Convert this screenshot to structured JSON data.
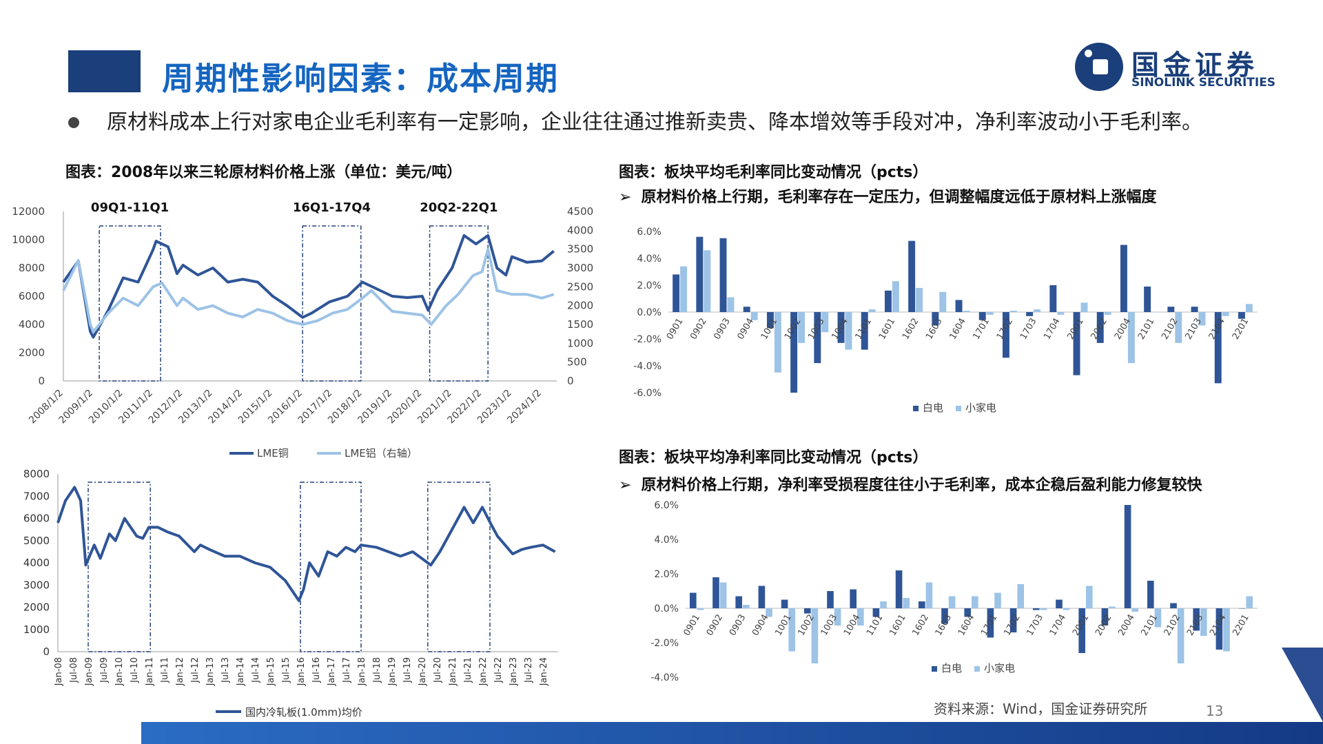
{
  "header": {
    "title": "周期性影响因素：成本周期"
  },
  "logo": {
    "cn": "国金证券",
    "en": "SINOLINK SECURITIES"
  },
  "bullet": {
    "text": "原材料成本上行对家电企业毛利率有一定影响，企业往往通过推新卖贵、降本增效等手段对冲，净利率波动小于毛利率。"
  },
  "fig1": {
    "title": "图表：2008年以来三轮原材料价格上涨（单位：美元/吨）"
  },
  "fig2": {
    "title": "图表：板块平均毛利率同比变动情况（pcts）",
    "note": "原材料价格上行期，毛利率存在一定压力，但调整幅度远低于原材料上涨幅度"
  },
  "fig3": {
    "title": "图表：板块平均净利率同比变动情况（pcts）",
    "note": "原材料价格上行期，净利率受损程度往往小于毛利率，成本企稳后盈利能力修复较快"
  },
  "source": "资料来源：Wind，国金证券研究所",
  "page_number": "13",
  "colors": {
    "dark": "#2f5597",
    "light": "#9dc3e6",
    "title": "#1565c0"
  },
  "chart_data": [
    {
      "type": "line",
      "periods": [
        "09Q1-11Q1",
        "16Q1-17Q4",
        "20Q2-22Q1"
      ],
      "x_ticks": [
        "2008/1/2",
        "2009/1/2",
        "2010/1/2",
        "2011/1/2",
        "2012/1/2",
        "2013/1/2",
        "2014/1/2",
        "2015/1/2",
        "2016/1/2",
        "2017/1/2",
        "2018/1/2",
        "2019/1/2",
        "2020/1/2",
        "2021/1/2",
        "2022/1/2",
        "2023/1/2",
        "2024/1/2"
      ],
      "y_left_ticks": [
        "0",
        "2000",
        "4000",
        "6000",
        "8000",
        "10000",
        "12000"
      ],
      "y_right_ticks": [
        "0",
        "500",
        "1000",
        "1500",
        "2000",
        "2500",
        "3000",
        "3500",
        "4000",
        "4500"
      ],
      "ylim_left": [
        0,
        12000
      ],
      "ylim_right": [
        0,
        4500
      ],
      "series": [
        {
          "name": "LME铜",
          "axis": "left",
          "x": [
            2008.0,
            2008.5,
            2008.9,
            2009.0,
            2009.5,
            2010.0,
            2010.5,
            2011.0,
            2011.1,
            2011.5,
            2011.8,
            2012.0,
            2012.5,
            2013.0,
            2013.5,
            2014.0,
            2014.5,
            2015.0,
            2015.5,
            2016.0,
            2016.3,
            2016.9,
            2017.5,
            2018.0,
            2018.5,
            2019.0,
            2019.5,
            2020.0,
            2020.2,
            2020.5,
            2021.0,
            2021.4,
            2021.8,
            2022.2,
            2022.5,
            2022.8,
            2023.0,
            2023.5,
            2024.0,
            2024.4
          ],
          "y": [
            7000,
            8500,
            3500,
            3100,
            5000,
            7300,
            7000,
            9300,
            9900,
            9500,
            7600,
            8200,
            7500,
            8000,
            7000,
            7200,
            7000,
            6000,
            5300,
            4500,
            4800,
            5600,
            6000,
            7000,
            6500,
            6000,
            5900,
            6000,
            5000,
            6400,
            8000,
            10300,
            9700,
            10300,
            8000,
            7500,
            8800,
            8400,
            8500,
            9200
          ]
        },
        {
          "name": "LME铝（右轴）",
          "axis": "right",
          "x": [
            2008.0,
            2008.5,
            2008.9,
            2009.0,
            2009.5,
            2010.0,
            2010.5,
            2011.0,
            2011.3,
            2011.8,
            2012.0,
            2012.5,
            2013.0,
            2013.5,
            2014.0,
            2014.5,
            2015.0,
            2015.5,
            2016.0,
            2016.5,
            2017.0,
            2017.5,
            2018.0,
            2018.3,
            2018.8,
            2019.0,
            2019.5,
            2020.0,
            2020.3,
            2020.8,
            2021.2,
            2021.7,
            2022.0,
            2022.2,
            2022.5,
            2023.0,
            2023.5,
            2024.0,
            2024.4
          ],
          "y": [
            2400,
            3200,
            1500,
            1300,
            1800,
            2200,
            2000,
            2500,
            2600,
            2000,
            2200,
            1900,
            2000,
            1800,
            1700,
            1900,
            1800,
            1600,
            1500,
            1600,
            1800,
            1900,
            2200,
            2400,
            2000,
            1850,
            1800,
            1750,
            1500,
            2000,
            2300,
            2800,
            2900,
            3500,
            2400,
            2300,
            2300,
            2200,
            2300
          ]
        }
      ],
      "legend": [
        "LME铜",
        "LME铝（右轴）"
      ],
      "legend_position": "bottom"
    },
    {
      "type": "line",
      "x_ticks": [
        "Jan-08",
        "Jul-08",
        "Jan-09",
        "Jul-09",
        "Jan-10",
        "Jul-10",
        "Jan-11",
        "Jul-11",
        "Jan-12",
        "Jul-12",
        "Jan-13",
        "Jul-13",
        "Jan-14",
        "Jul-14",
        "Jan-15",
        "Jul-15",
        "Jan-16",
        "Jul-16",
        "Jan-17",
        "Jul-17",
        "Jan-18",
        "Jul-18",
        "Jan-19",
        "Jul-19",
        "Jan-20",
        "Jul-20",
        "Jan-21",
        "Jul-21",
        "Jan-22",
        "Jul-22",
        "Jan-23",
        "Jul-23",
        "Jan-24"
      ],
      "y_ticks": [
        "0",
        "1000",
        "2000",
        "3000",
        "4000",
        "5000",
        "6000",
        "7000",
        "8000"
      ],
      "ylim": [
        0,
        8000
      ],
      "series": [
        {
          "name": "国内冷轧板(1.0mm)均价",
          "x": [
            2008.0,
            2008.25,
            2008.55,
            2008.75,
            2008.92,
            2009.2,
            2009.4,
            2009.7,
            2009.9,
            2010.2,
            2010.3,
            2010.6,
            2010.8,
            2011.0,
            2011.3,
            2011.6,
            2012.0,
            2012.5,
            2012.7,
            2013.0,
            2013.5,
            2014.0,
            2014.5,
            2015.0,
            2015.5,
            2015.95,
            2016.1,
            2016.3,
            2016.6,
            2016.9,
            2017.2,
            2017.5,
            2017.8,
            2018.0,
            2018.5,
            2018.9,
            2019.3,
            2019.7,
            2020.0,
            2020.3,
            2020.6,
            2021.0,
            2021.4,
            2021.7,
            2022.0,
            2022.3,
            2022.5,
            2023.0,
            2023.3,
            2023.6,
            2024.0,
            2024.4
          ],
          "y": [
            5800,
            6800,
            7400,
            6800,
            3900,
            4800,
            4200,
            5300,
            5000,
            6000,
            5800,
            5200,
            5100,
            5600,
            5600,
            5400,
            5200,
            4500,
            4800,
            4600,
            4300,
            4300,
            4000,
            3800,
            3200,
            2300,
            2800,
            4000,
            3400,
            4500,
            4300,
            4700,
            4500,
            4800,
            4700,
            4500,
            4300,
            4500,
            4200,
            3900,
            4500,
            5500,
            6500,
            5800,
            6500,
            5700,
            5200,
            4400,
            4600,
            4700,
            4800,
            4500
          ]
        }
      ],
      "legend": [
        "国内冷轧板(1.0mm)均价"
      ],
      "legend_position": "bottom"
    },
    {
      "type": "bar",
      "categories": [
        "0901",
        "0902",
        "0903",
        "0904",
        "1001",
        "1002",
        "1003",
        "1004",
        "1101",
        "1601",
        "1602",
        "1603",
        "1604",
        "1701",
        "1702",
        "1703",
        "1704",
        "2001",
        "2002",
        "2004",
        "2101",
        "2102",
        "2103",
        "2104",
        "2201"
      ],
      "ylim": [
        -6,
        6
      ],
      "y_ticks": [
        "6.0%",
        "4.0%",
        "2.0%",
        "0.0%",
        "-2.0%",
        "-4.0%",
        "-6.0%"
      ],
      "series": [
        {
          "name": "白电",
          "values": [
            2.8,
            5.6,
            5.5,
            0.4,
            -1.2,
            -6.0,
            -3.8,
            -2.3,
            -2.8,
            1.6,
            5.3,
            -1.0,
            0.9,
            -0.6,
            -3.4,
            -0.3,
            2.0,
            -4.7,
            -2.3,
            5.0,
            1.9,
            0.4,
            0.4,
            -5.3,
            -0.5
          ]
        },
        {
          "name": "小家电",
          "values": [
            3.4,
            4.6,
            1.1,
            -0.6,
            -4.5,
            -2.3,
            -1.5,
            -2.8,
            0.2,
            2.3,
            1.8,
            1.5,
            0.1,
            -0.2,
            0.1,
            0.2,
            -0.2,
            0.7,
            -0.2,
            -3.8,
            0.0,
            -2.3,
            -1.0,
            -0.3,
            0.6
          ]
        }
      ],
      "legend": [
        "白电",
        "小家电"
      ],
      "legend_position": "bottom"
    },
    {
      "type": "bar",
      "categories": [
        "0901",
        "0902",
        "0903",
        "0904",
        "1001",
        "1002",
        "1003",
        "1004",
        "1101",
        "1601",
        "1602",
        "1603",
        "1604",
        "1701",
        "1702",
        "1703",
        "1704",
        "2001",
        "2002",
        "2004",
        "2101",
        "2102",
        "2103",
        "2104",
        "2201"
      ],
      "ylim": [
        -4,
        6
      ],
      "y_ticks": [
        "6.0%",
        "4.0%",
        "2.0%",
        "0.0%",
        "-2.0%",
        "-4.0%"
      ],
      "series": [
        {
          "name": "白电",
          "values": [
            0.9,
            1.8,
            0.7,
            1.3,
            0.5,
            -0.3,
            1.0,
            1.1,
            -0.5,
            2.2,
            0.4,
            -0.9,
            -0.5,
            -1.7,
            -1.4,
            -0.1,
            0.5,
            -2.6,
            -1.0,
            6.0,
            1.6,
            0.3,
            -1.3,
            -2.4,
            0.0
          ]
        },
        {
          "name": "小家电",
          "values": [
            -0.1,
            1.5,
            0.2,
            -0.5,
            -2.5,
            -3.2,
            -1.0,
            -1.0,
            0.4,
            0.6,
            1.5,
            0.7,
            0.7,
            0.9,
            1.4,
            -0.1,
            -0.1,
            1.3,
            0.1,
            -0.2,
            -1.1,
            -3.2,
            -1.6,
            -2.5,
            0.7
          ]
        }
      ],
      "legend": [
        "白电",
        "小家电"
      ],
      "legend_position": "bottom"
    }
  ]
}
